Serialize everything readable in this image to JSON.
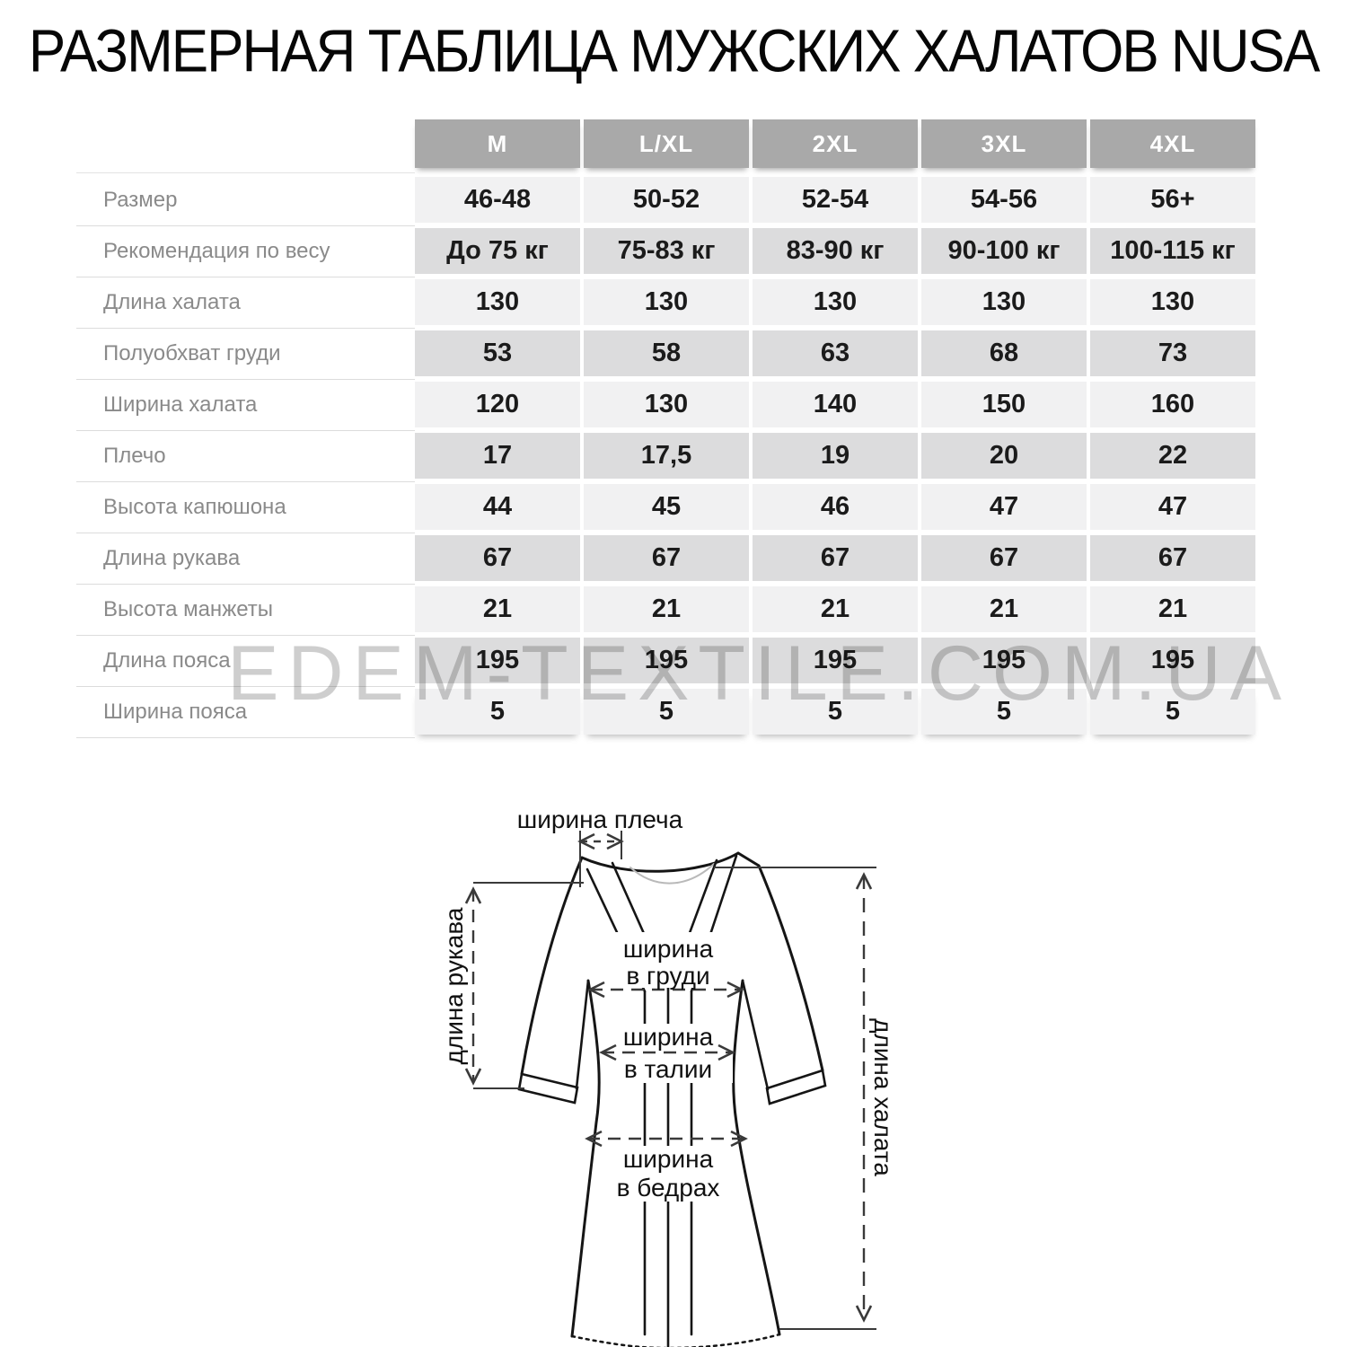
{
  "title": "РАЗМЕРНАЯ ТАБЛИЦА МУЖСКИХ ХАЛАТОВ NUSA",
  "watermark": "EDEM-TEXTILE.COM.UA",
  "table": {
    "columns": [
      "M",
      "L/XL",
      "2XL",
      "3XL",
      "4XL"
    ],
    "rows": [
      {
        "label": "Размер",
        "values": [
          "46-48",
          "50-52",
          "52-54",
          "54-56",
          "56+"
        ]
      },
      {
        "label": "Рекомендация по весу",
        "values": [
          "До 75 кг",
          "75-83 кг",
          "83-90 кг",
          "90-100 кг",
          "100-115 кг"
        ]
      },
      {
        "label": "Длина халата",
        "values": [
          "130",
          "130",
          "130",
          "130",
          "130"
        ]
      },
      {
        "label": "Полуобхват груди",
        "values": [
          "53",
          "58",
          "63",
          "68",
          "73"
        ]
      },
      {
        "label": "Ширина халата",
        "values": [
          "120",
          "130",
          "140",
          "150",
          "160"
        ]
      },
      {
        "label": "Плечо",
        "values": [
          "17",
          "17,5",
          "19",
          "20",
          "22"
        ]
      },
      {
        "label": "Высота капюшона",
        "values": [
          "44",
          "45",
          "46",
          "47",
          "47"
        ]
      },
      {
        "label": "Длина рукава",
        "values": [
          "67",
          "67",
          "67",
          "67",
          "67"
        ]
      },
      {
        "label": "Высота манжеты",
        "values": [
          "21",
          "21",
          "21",
          "21",
          "21"
        ]
      },
      {
        "label": "Длина пояса",
        "values": [
          "195",
          "195",
          "195",
          "195",
          "195"
        ]
      },
      {
        "label": "Ширина пояса",
        "values": [
          "5",
          "5",
          "5",
          "5",
          "5"
        ]
      }
    ]
  },
  "diagram": {
    "shoulder_label": "ширина плеча",
    "sleeve_label": "длина рукава",
    "chest_label_line1": "ширина",
    "chest_label_line2": "в груди",
    "waist_label_line1": "ширина",
    "waist_label_line2": "в талии",
    "hips_label_line1": "ширина",
    "hips_label_line2": "в бедрах",
    "length_label": "длина халата"
  },
  "colors": {
    "header_bg": "#a9a9a9",
    "header_text": "#ffffff",
    "row_light": "#f1f1f2",
    "row_dark": "#dcdcdd",
    "label_text": "#8a8a8a",
    "value_text": "#1b1b1b",
    "watermark": "#c6c6c6",
    "outline": "#151515"
  }
}
